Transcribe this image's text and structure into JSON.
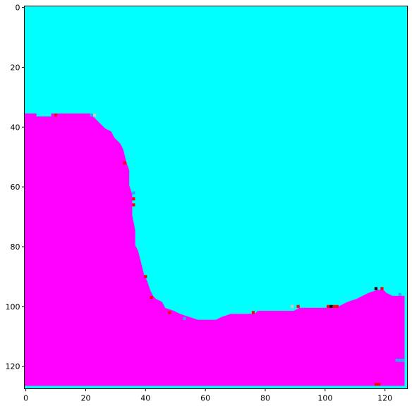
{
  "chart_data": {
    "type": "heatmap",
    "title": "",
    "xlabel": "",
    "ylabel": "",
    "xlim": [
      -0.5,
      127.5
    ],
    "ylim": [
      127.5,
      -0.5
    ],
    "x_ticks": [
      0,
      20,
      40,
      60,
      80,
      100,
      120
    ],
    "y_ticks": [
      0,
      20,
      40,
      60,
      80,
      100,
      120
    ],
    "x_tick_labels": [
      "0",
      "20",
      "40",
      "60",
      "80",
      "100",
      "120"
    ],
    "y_tick_labels": [
      "0",
      "20",
      "40",
      "60",
      "80",
      "100",
      "120"
    ],
    "grid": false,
    "colors": {
      "background_region": "#00ffff",
      "foreground_region": "#ff00ff",
      "artifact_red": "#ff0000",
      "artifact_black": "#000000",
      "artifact_light": "#c8c8c8",
      "artifact_blue": "#2aa6ff"
    },
    "boundary": [
      [
        0,
        36
      ],
      [
        4,
        36
      ],
      [
        4,
        37
      ],
      [
        9,
        37
      ],
      [
        9,
        36
      ],
      [
        22,
        36
      ],
      [
        22,
        37
      ],
      [
        23,
        37
      ],
      [
        24,
        38
      ],
      [
        25,
        39
      ],
      [
        26,
        40
      ],
      [
        27,
        41
      ],
      [
        29,
        42
      ],
      [
        30,
        44
      ],
      [
        32,
        46
      ],
      [
        33,
        48
      ],
      [
        34,
        52
      ],
      [
        35,
        55
      ],
      [
        35,
        60
      ],
      [
        36,
        63
      ],
      [
        36,
        70
      ],
      [
        37,
        75
      ],
      [
        37,
        80
      ],
      [
        38,
        82
      ],
      [
        39,
        86
      ],
      [
        40,
        90
      ],
      [
        41,
        92
      ],
      [
        42,
        95
      ],
      [
        43,
        97
      ],
      [
        44,
        98
      ],
      [
        46,
        99
      ],
      [
        47,
        101
      ],
      [
        50,
        102
      ],
      [
        52,
        103
      ],
      [
        55,
        104
      ],
      [
        58,
        105
      ],
      [
        64,
        105
      ],
      [
        66,
        104
      ],
      [
        69,
        103
      ],
      [
        77,
        103
      ],
      [
        78,
        102
      ],
      [
        90,
        102
      ],
      [
        92,
        101
      ],
      [
        104,
        101
      ],
      [
        106,
        100
      ],
      [
        108,
        99
      ],
      [
        111,
        98
      ],
      [
        113,
        97
      ],
      [
        115,
        96
      ],
      [
        118,
        95
      ],
      [
        120,
        95
      ],
      [
        121,
        96
      ],
      [
        123,
        97
      ],
      [
        127,
        97
      ],
      [
        127,
        127
      ],
      [
        0,
        127
      ]
    ],
    "artifacts": [
      {
        "x": 10,
        "y": 36,
        "color": "#ff0000"
      },
      {
        "x": 22,
        "y": 36,
        "color": "#2aa6ff"
      },
      {
        "x": 23,
        "y": 36,
        "color": "#c8c8c8"
      },
      {
        "x": 33,
        "y": 52,
        "color": "#ff0000"
      },
      {
        "x": 36,
        "y": 62,
        "color": "#2aa6ff"
      },
      {
        "x": 36,
        "y": 64,
        "color": "#ff0000"
      },
      {
        "x": 36,
        "y": 66,
        "color": "#ff0000"
      },
      {
        "x": 40,
        "y": 90,
        "color": "#ff0000"
      },
      {
        "x": 42,
        "y": 97,
        "color": "#ff0000"
      },
      {
        "x": 48,
        "y": 102,
        "color": "#ff0000"
      },
      {
        "x": 53,
        "y": 104,
        "color": "#2aa6ff"
      },
      {
        "x": 76,
        "y": 102,
        "color": "#ff0000"
      },
      {
        "x": 89,
        "y": 100,
        "color": "#c8c8c8"
      },
      {
        "x": 91,
        "y": 100,
        "color": "#ff0000"
      },
      {
        "x": 101,
        "y": 100,
        "color": "#ff0000"
      },
      {
        "x": 102,
        "y": 100,
        "color": "#000000"
      },
      {
        "x": 103,
        "y": 100,
        "color": "#ff0000"
      },
      {
        "x": 104,
        "y": 100,
        "color": "#ff0000"
      },
      {
        "x": 117,
        "y": 94,
        "color": "#000000"
      },
      {
        "x": 119,
        "y": 94,
        "color": "#ff0000"
      },
      {
        "x": 125,
        "y": 96,
        "color": "#2aa6ff"
      },
      {
        "x": 124,
        "y": 118,
        "color": "#2aa6ff"
      },
      {
        "x": 125,
        "y": 118,
        "color": "#2aa6ff"
      },
      {
        "x": 126,
        "y": 118,
        "color": "#2aa6ff"
      },
      {
        "x": 117,
        "y": 126,
        "color": "#ff0000"
      },
      {
        "x": 118,
        "y": 126,
        "color": "#ff0000"
      }
    ]
  }
}
